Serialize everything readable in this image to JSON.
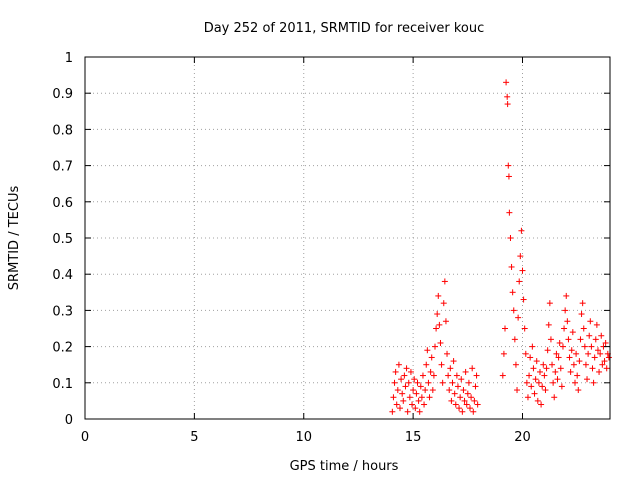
{
  "chart_data": {
    "type": "scatter",
    "title": "Day 252 of 2011, SRMTID for receiver kouc",
    "xlabel": "GPS time / hours",
    "ylabel": "SRMTID / TECUs",
    "xlim": [
      0,
      24
    ],
    "ylim": [
      0,
      1
    ],
    "xticks": [
      0,
      5,
      10,
      15,
      20
    ],
    "xtick_labels": [
      "0",
      "5",
      "10",
      "15",
      "20"
    ],
    "yticks": [
      0,
      0.1,
      0.2,
      0.3,
      0.4,
      0.5,
      0.6,
      0.7,
      0.8,
      0.9,
      1
    ],
    "ytick_labels": [
      "0",
      "0.1",
      "0.2",
      "0.3",
      "0.4",
      "0.5",
      "0.6",
      "0.7",
      "0.8",
      "0.9",
      "1"
    ],
    "grid": true,
    "marker": "+",
    "point_color": "#ff0000",
    "series": [
      {
        "values": [
          [
            14.05,
            0.02
          ],
          [
            14.1,
            0.06
          ],
          [
            14.15,
            0.1
          ],
          [
            14.2,
            0.13
          ],
          [
            14.25,
            0.04
          ],
          [
            14.3,
            0.08
          ],
          [
            14.35,
            0.15
          ],
          [
            14.4,
            0.03
          ],
          [
            14.45,
            0.11
          ],
          [
            14.5,
            0.07
          ],
          [
            14.55,
            0.05
          ],
          [
            14.6,
            0.12
          ],
          [
            14.65,
            0.09
          ],
          [
            14.7,
            0.14
          ],
          [
            14.75,
            0.02
          ],
          [
            14.8,
            0.1
          ],
          [
            14.85,
            0.06
          ],
          [
            14.9,
            0.13
          ],
          [
            14.95,
            0.04
          ],
          [
            15.0,
            0.08
          ],
          [
            15.05,
            0.11
          ],
          [
            15.1,
            0.03
          ],
          [
            15.15,
            0.07
          ],
          [
            15.2,
            0.1
          ],
          [
            15.25,
            0.05
          ],
          [
            15.3,
            0.02
          ],
          [
            15.35,
            0.09
          ],
          [
            15.4,
            0.06
          ],
          [
            15.45,
            0.12
          ],
          [
            15.5,
            0.04
          ],
          [
            15.55,
            0.08
          ],
          [
            15.6,
            0.15
          ],
          [
            15.65,
            0.19
          ],
          [
            15.7,
            0.1
          ],
          [
            15.75,
            0.06
          ],
          [
            15.8,
            0.13
          ],
          [
            15.85,
            0.17
          ],
          [
            15.9,
            0.08
          ],
          [
            15.95,
            0.12
          ],
          [
            16.0,
            0.2
          ],
          [
            16.05,
            0.25
          ],
          [
            16.1,
            0.29
          ],
          [
            16.15,
            0.34
          ],
          [
            16.2,
            0.26
          ],
          [
            16.25,
            0.21
          ],
          [
            16.3,
            0.15
          ],
          [
            16.35,
            0.1
          ],
          [
            16.4,
            0.32
          ],
          [
            16.45,
            0.38
          ],
          [
            16.5,
            0.27
          ],
          [
            16.55,
            0.18
          ],
          [
            16.6,
            0.12
          ],
          [
            16.65,
            0.08
          ],
          [
            16.7,
            0.14
          ],
          [
            16.75,
            0.05
          ],
          [
            16.8,
            0.1
          ],
          [
            16.85,
            0.16
          ],
          [
            16.9,
            0.07
          ],
          [
            16.95,
            0.04
          ],
          [
            17.0,
            0.12
          ],
          [
            17.05,
            0.09
          ],
          [
            17.1,
            0.03
          ],
          [
            17.15,
            0.06
          ],
          [
            17.2,
            0.11
          ],
          [
            17.25,
            0.02
          ],
          [
            17.3,
            0.08
          ],
          [
            17.35,
            0.05
          ],
          [
            17.4,
            0.13
          ],
          [
            17.45,
            0.04
          ],
          [
            17.5,
            0.07
          ],
          [
            17.55,
            0.1
          ],
          [
            17.6,
            0.03
          ],
          [
            17.65,
            0.06
          ],
          [
            17.7,
            0.14
          ],
          [
            17.75,
            0.02
          ],
          [
            17.8,
            0.05
          ],
          [
            17.85,
            0.09
          ],
          [
            17.9,
            0.12
          ],
          [
            17.95,
            0.04
          ],
          [
            19.1,
            0.12
          ],
          [
            19.15,
            0.18
          ],
          [
            19.2,
            0.25
          ],
          [
            19.25,
            0.93
          ],
          [
            19.3,
            0.89
          ],
          [
            19.32,
            0.87
          ],
          [
            19.35,
            0.7
          ],
          [
            19.38,
            0.67
          ],
          [
            19.4,
            0.57
          ],
          [
            19.45,
            0.5
          ],
          [
            19.5,
            0.42
          ],
          [
            19.55,
            0.35
          ],
          [
            19.6,
            0.3
          ],
          [
            19.65,
            0.22
          ],
          [
            19.7,
            0.15
          ],
          [
            19.75,
            0.08
          ],
          [
            19.8,
            0.28
          ],
          [
            19.85,
            0.38
          ],
          [
            19.9,
            0.45
          ],
          [
            19.95,
            0.52
          ],
          [
            20.0,
            0.41
          ],
          [
            20.05,
            0.33
          ],
          [
            20.1,
            0.25
          ],
          [
            20.15,
            0.18
          ],
          [
            20.2,
            0.1
          ],
          [
            20.25,
            0.06
          ],
          [
            20.3,
            0.12
          ],
          [
            20.35,
            0.17
          ],
          [
            20.4,
            0.09
          ],
          [
            20.45,
            0.2
          ],
          [
            20.5,
            0.14
          ],
          [
            20.55,
            0.07
          ],
          [
            20.6,
            0.11
          ],
          [
            20.65,
            0.16
          ],
          [
            20.7,
            0.05
          ],
          [
            20.75,
            0.1
          ],
          [
            20.8,
            0.13
          ],
          [
            20.85,
            0.04
          ],
          [
            20.9,
            0.09
          ],
          [
            20.95,
            0.15
          ],
          [
            21.0,
            0.12
          ],
          [
            21.05,
            0.08
          ],
          [
            21.1,
            0.14
          ],
          [
            21.15,
            0.19
          ],
          [
            21.2,
            0.26
          ],
          [
            21.25,
            0.32
          ],
          [
            21.3,
            0.22
          ],
          [
            21.35,
            0.15
          ],
          [
            21.4,
            0.1
          ],
          [
            21.45,
            0.06
          ],
          [
            21.5,
            0.13
          ],
          [
            21.55,
            0.18
          ],
          [
            21.6,
            0.11
          ],
          [
            21.65,
            0.17
          ],
          [
            21.7,
            0.21
          ],
          [
            21.75,
            0.14
          ],
          [
            21.8,
            0.09
          ],
          [
            21.85,
            0.2
          ],
          [
            21.9,
            0.25
          ],
          [
            21.95,
            0.3
          ],
          [
            22.0,
            0.34
          ],
          [
            22.05,
            0.27
          ],
          [
            22.1,
            0.22
          ],
          [
            22.15,
            0.17
          ],
          [
            22.2,
            0.13
          ],
          [
            22.25,
            0.19
          ],
          [
            22.3,
            0.24
          ],
          [
            22.35,
            0.15
          ],
          [
            22.4,
            0.1
          ],
          [
            22.45,
            0.18
          ],
          [
            22.5,
            0.12
          ],
          [
            22.55,
            0.08
          ],
          [
            22.6,
            0.16
          ],
          [
            22.65,
            0.22
          ],
          [
            22.7,
            0.29
          ],
          [
            22.75,
            0.32
          ],
          [
            22.8,
            0.25
          ],
          [
            22.85,
            0.2
          ],
          [
            22.9,
            0.15
          ],
          [
            22.95,
            0.11
          ],
          [
            23.0,
            0.18
          ],
          [
            23.05,
            0.23
          ],
          [
            23.1,
            0.27
          ],
          [
            23.15,
            0.2
          ],
          [
            23.2,
            0.14
          ],
          [
            23.25,
            0.1
          ],
          [
            23.3,
            0.17
          ],
          [
            23.35,
            0.22
          ],
          [
            23.4,
            0.26
          ],
          [
            23.45,
            0.19
          ],
          [
            23.5,
            0.13
          ],
          [
            23.55,
            0.18
          ],
          [
            23.6,
            0.23
          ],
          [
            23.65,
            0.15
          ],
          [
            23.7,
            0.2
          ],
          [
            23.75,
            0.16
          ],
          [
            23.8,
            0.21
          ],
          [
            23.85,
            0.14
          ],
          [
            23.9,
            0.18
          ],
          [
            23.95,
            0.17
          ]
        ]
      }
    ]
  }
}
